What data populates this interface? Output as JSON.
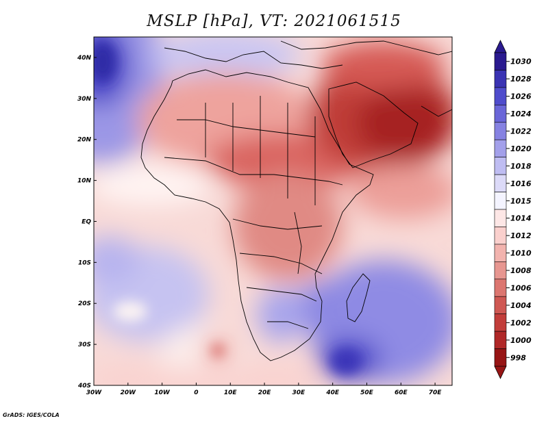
{
  "title": "MSLP [hPa], VT: 2021061515",
  "footer": "GrADS: IGES/COLA",
  "map": {
    "lon_ticks": [
      {
        "lon": -30,
        "label": "30W"
      },
      {
        "lon": -20,
        "label": "20W"
      },
      {
        "lon": -10,
        "label": "10W"
      },
      {
        "lon": 0,
        "label": "0"
      },
      {
        "lon": 10,
        "label": "10E"
      },
      {
        "lon": 20,
        "label": "20E"
      },
      {
        "lon": 30,
        "label": "30E"
      },
      {
        "lon": 40,
        "label": "40E"
      },
      {
        "lon": 50,
        "label": "50E"
      },
      {
        "lon": 60,
        "label": "60E"
      },
      {
        "lon": 70,
        "label": "70E"
      }
    ],
    "lat_ticks": [
      {
        "lat": 40,
        "label": "40N"
      },
      {
        "lat": 30,
        "label": "30N"
      },
      {
        "lat": 20,
        "label": "20N"
      },
      {
        "lat": 10,
        "label": "10N"
      },
      {
        "lat": 0,
        "label": "EQ"
      },
      {
        "lat": -10,
        "label": "10S"
      },
      {
        "lat": -20,
        "label": "20S"
      },
      {
        "lat": -30,
        "label": "30S"
      },
      {
        "lat": -40,
        "label": "40S"
      }
    ],
    "lon_range": [
      -30,
      75
    ],
    "lat_range": [
      -40,
      45
    ]
  },
  "colorbar": {
    "levels": [
      "1030",
      "1028",
      "1026",
      "1024",
      "1022",
      "1020",
      "1018",
      "1016",
      "1015",
      "1014",
      "1012",
      "1010",
      "1008",
      "1006",
      "1004",
      "1002",
      "1000",
      "998"
    ],
    "colors": [
      "#2a1a8f",
      "#3a33b3",
      "#4f4ccc",
      "#6a66d8",
      "#8682e2",
      "#a3a0ea",
      "#bfbdf2",
      "#dcdaf8",
      "#f4f4ff",
      "#fde7e6",
      "#fad0cd",
      "#f2b3ae",
      "#e79690",
      "#dc7670",
      "#cf5853",
      "#c23d3a",
      "#b02828",
      "#971515"
    ]
  }
}
